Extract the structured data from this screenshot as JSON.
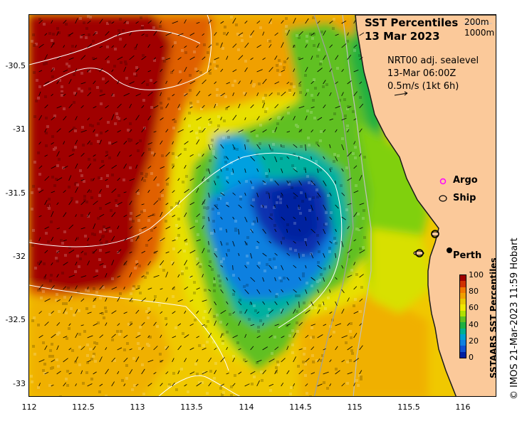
{
  "title": {
    "line1": "SST Percentiles",
    "line2": "13 Mar 2023"
  },
  "depth_legend": {
    "contour1": "200m",
    "contour2": "1000m"
  },
  "vector_legend": {
    "line1": "NRT00 adj. sealevel",
    "line2": "13-Mar 06:00Z",
    "line3": "0.5m/s (1kt 6h)"
  },
  "markers": {
    "argo": "Argo",
    "ship": "Ship",
    "city": "Perth"
  },
  "y_axis_ticks": [
    "-30.5",
    "-31",
    "-31.5",
    "-32",
    "-32.5",
    "-33"
  ],
  "x_axis_ticks": [
    "112",
    "112.5",
    "113",
    "113.5",
    "114",
    "114.5",
    "115",
    "115.5",
    "116"
  ],
  "colorbar": {
    "title": "SSTAARS SST Percentiles",
    "ticks": [
      "100",
      "80",
      "60",
      "40",
      "20",
      "0"
    ],
    "colors": [
      "#a00000",
      "#d03000",
      "#f07800",
      "#f0a000",
      "#e8c800",
      "#f0e800",
      "#b0e000",
      "#60c020",
      "#20b040",
      "#00b090",
      "#00a0d0",
      "#1080e0",
      "#1050d0",
      "#0020a0"
    ]
  },
  "credit": "© IMOS 21-Mar-2023 11:59 Hobart",
  "palette": {
    "land": "#fbc99a",
    "coast": "#1a1a1a",
    "contour": "#c0c0c0"
  }
}
